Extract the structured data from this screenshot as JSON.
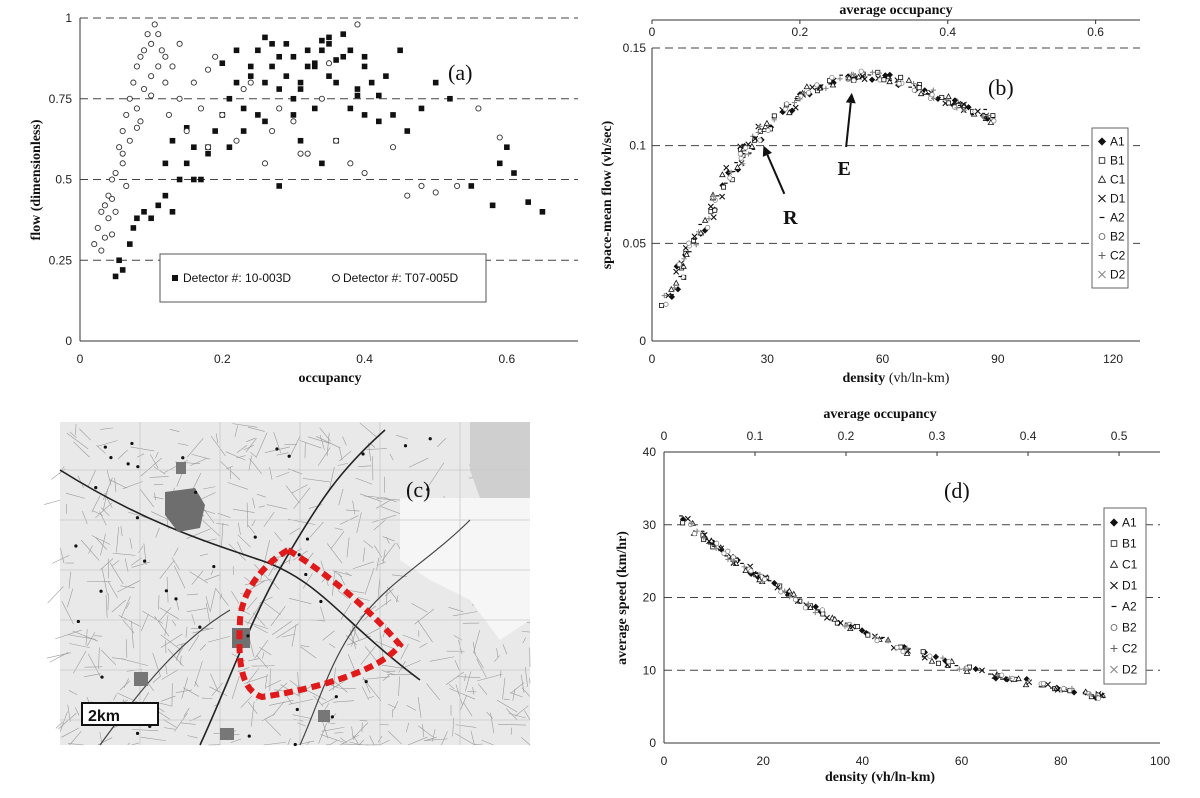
{
  "chart_data": [
    {
      "id": "a",
      "type": "scatter",
      "panel_label": "(a)",
      "xlabel": "occupancy",
      "ylabel": "flow (dimensionless)",
      "xlim": [
        0,
        0.7
      ],
      "ylim": [
        0,
        1
      ],
      "xticks": [
        "0",
        "0.2",
        "0.4",
        "0.6"
      ],
      "xtick_values": [
        0,
        0.2,
        0.4,
        0.6
      ],
      "yticks": [
        "0",
        "0.25",
        "0.5",
        "0.75",
        "1"
      ],
      "ytick_values": [
        0,
        0.25,
        0.5,
        0.75,
        1
      ],
      "legend_position": "bottom-center",
      "series": [
        {
          "name": "Detector #: 10-003D",
          "marker": "filled-square",
          "x": [
            0.05,
            0.055,
            0.06,
            0.07,
            0.075,
            0.08,
            0.09,
            0.1,
            0.11,
            0.12,
            0.13,
            0.14,
            0.15,
            0.16,
            0.17,
            0.18,
            0.19,
            0.2,
            0.21,
            0.22,
            0.23,
            0.24,
            0.25,
            0.26,
            0.27,
            0.28,
            0.29,
            0.3,
            0.31,
            0.32,
            0.33,
            0.34,
            0.35,
            0.36,
            0.37,
            0.38,
            0.39,
            0.4,
            0.41,
            0.42,
            0.43,
            0.44,
            0.45,
            0.46,
            0.48,
            0.5,
            0.52,
            0.55,
            0.58,
            0.59,
            0.6,
            0.61,
            0.63,
            0.65,
            0.22,
            0.24,
            0.26,
            0.28,
            0.3,
            0.32,
            0.34,
            0.36,
            0.38,
            0.4,
            0.25,
            0.27,
            0.29,
            0.31,
            0.33,
            0.35,
            0.37,
            0.39,
            0.21,
            0.23,
            0.3,
            0.34,
            0.42,
            0.16,
            0.18,
            0.13,
            0.15,
            0.12,
            0.2,
            0.26,
            0.36,
            0.4,
            0.33,
            0.31,
            0.35,
            0.28
          ],
          "y": [
            0.2,
            0.25,
            0.22,
            0.3,
            0.35,
            0.38,
            0.4,
            0.38,
            0.42,
            0.45,
            0.4,
            0.5,
            0.55,
            0.6,
            0.5,
            0.6,
            0.65,
            0.7,
            0.75,
            0.8,
            0.72,
            0.85,
            0.9,
            0.8,
            0.85,
            0.78,
            0.92,
            0.88,
            0.8,
            0.9,
            0.85,
            0.93,
            0.82,
            0.87,
            0.95,
            0.9,
            0.78,
            0.85,
            0.8,
            0.76,
            0.82,
            0.7,
            0.9,
            0.65,
            0.72,
            0.8,
            0.75,
            0.48,
            0.42,
            0.55,
            0.6,
            0.52,
            0.43,
            0.4,
            0.9,
            0.82,
            0.94,
            0.88,
            0.75,
            0.85,
            0.9,
            0.8,
            0.72,
            0.88,
            0.7,
            0.92,
            0.82,
            0.78,
            0.86,
            0.94,
            0.88,
            0.76,
            0.6,
            0.65,
            0.7,
            0.55,
            0.68,
            0.5,
            0.58,
            0.62,
            0.66,
            0.55,
            0.86,
            0.68,
            0.62,
            0.7,
            0.72,
            0.62,
            0.92,
            0.48
          ]
        },
        {
          "name": "Detector #: T07-005D",
          "marker": "open-circle",
          "x": [
            0.02,
            0.025,
            0.03,
            0.03,
            0.035,
            0.04,
            0.04,
            0.045,
            0.05,
            0.05,
            0.055,
            0.06,
            0.06,
            0.065,
            0.07,
            0.07,
            0.075,
            0.08,
            0.08,
            0.085,
            0.09,
            0.09,
            0.095,
            0.1,
            0.1,
            0.105,
            0.11,
            0.11,
            0.115,
            0.12,
            0.125,
            0.13,
            0.14,
            0.15,
            0.16,
            0.17,
            0.18,
            0.19,
            0.2,
            0.22,
            0.24,
            0.26,
            0.28,
            0.3,
            0.32,
            0.34,
            0.36,
            0.38,
            0.4,
            0.44,
            0.46,
            0.48,
            0.5,
            0.53,
            0.56,
            0.59,
            0.035,
            0.045,
            0.06,
            0.08,
            0.1,
            0.12,
            0.14,
            0.18,
            0.23,
            0.27,
            0.31,
            0.35,
            0.39,
            0.045,
            0.065,
            0.085
          ],
          "y": [
            0.3,
            0.35,
            0.4,
            0.28,
            0.42,
            0.38,
            0.45,
            0.5,
            0.52,
            0.4,
            0.6,
            0.65,
            0.55,
            0.7,
            0.75,
            0.62,
            0.8,
            0.85,
            0.72,
            0.88,
            0.9,
            0.78,
            0.95,
            0.92,
            0.82,
            0.98,
            0.95,
            0.85,
            0.9,
            0.8,
            0.7,
            0.85,
            0.75,
            0.65,
            0.8,
            0.72,
            0.6,
            0.88,
            0.7,
            0.62,
            0.8,
            0.55,
            0.72,
            0.68,
            0.58,
            0.75,
            0.62,
            0.55,
            0.52,
            0.6,
            0.45,
            0.48,
            0.46,
            0.48,
            0.72,
            0.63,
            0.32,
            0.44,
            0.58,
            0.66,
            0.76,
            0.88,
            0.92,
            0.84,
            0.78,
            0.65,
            0.58,
            0.86,
            0.98,
            0.33,
            0.48,
            0.68
          ]
        }
      ]
    },
    {
      "id": "b",
      "type": "scatter",
      "panel_label": "(b)",
      "xlabel": "density",
      "xlabel_unit": "(vh/ln-km)",
      "ylabel": "space-mean flow (vh/sec)",
      "top_xlabel": "average occupancy",
      "xlim": [
        0,
        127
      ],
      "ylim": [
        0,
        0.15
      ],
      "xticks": [
        "0",
        "30",
        "60",
        "90",
        "120"
      ],
      "xtick_values": [
        0,
        30,
        60,
        90,
        120
      ],
      "yticks": [
        "0",
        "0.05",
        "0.1",
        "0.15"
      ],
      "ytick_values": [
        0,
        0.05,
        0.1,
        0.15
      ],
      "top_xlim": [
        0,
        0.66
      ],
      "top_xticks": [
        "0",
        "0.2",
        "0.4",
        "0.6"
      ],
      "top_xtick_values": [
        0,
        0.2,
        0.4,
        0.6
      ],
      "legend": [
        "A1",
        "B1",
        "C1",
        "D1",
        "A2",
        "B2",
        "C2",
        "D2"
      ],
      "legend_position": "right",
      "annotations": [
        {
          "text": "E",
          "target_x": 52,
          "target_y": 0.127,
          "text_x": 50,
          "text_y": 0.085
        },
        {
          "text": "R",
          "target_x": 29,
          "target_y": 0.1,
          "text_x": 36,
          "text_y": 0.06
        }
      ],
      "curve_x": [
        4,
        5,
        7,
        9,
        11,
        13,
        15,
        17,
        19,
        21,
        23,
        25,
        27,
        29,
        31,
        34,
        37,
        40,
        43,
        46,
        49,
        52,
        55,
        58,
        61,
        64,
        67,
        70,
        73,
        76,
        79,
        82,
        85,
        88
      ],
      "curve_y": [
        0.02,
        0.026,
        0.034,
        0.042,
        0.05,
        0.058,
        0.066,
        0.074,
        0.081,
        0.088,
        0.094,
        0.099,
        0.104,
        0.108,
        0.112,
        0.118,
        0.123,
        0.127,
        0.13,
        0.132,
        0.134,
        0.135,
        0.136,
        0.136,
        0.135,
        0.133,
        0.131,
        0.128,
        0.126,
        0.123,
        0.121,
        0.119,
        0.117,
        0.114
      ]
    },
    {
      "id": "d",
      "type": "scatter",
      "panel_label": "(d)",
      "xlabel": "density",
      "xlabel_unit": "(vh/ln-km)",
      "ylabel": "average speed (km/hr)",
      "top_xlabel": "average occupancy",
      "xlim": [
        0,
        100
      ],
      "ylim": [
        0,
        40
      ],
      "xticks": [
        "0",
        "20",
        "40",
        "60",
        "80",
        "100"
      ],
      "xtick_values": [
        0,
        20,
        40,
        60,
        80,
        100
      ],
      "yticks": [
        "0",
        "10",
        "20",
        "30",
        "40"
      ],
      "ytick_values": [
        0,
        10,
        20,
        30,
        40
      ],
      "top_xlim": [
        0,
        0.545
      ],
      "top_xticks": [
        "0",
        "0.1",
        "0.2",
        "0.3",
        "0.4",
        "0.5"
      ],
      "top_xtick_values": [
        0,
        0.1,
        0.2,
        0.3,
        0.4,
        0.5
      ],
      "legend": [
        "A1",
        "B1",
        "C1",
        "D1",
        "A2",
        "B2",
        "C2",
        "D2"
      ],
      "legend_position": "right",
      "curve_x": [
        4,
        6,
        8,
        10,
        12,
        14,
        16,
        18,
        20,
        22,
        25,
        28,
        31,
        34,
        37,
        40,
        44,
        48,
        52,
        56,
        60,
        64,
        68,
        72,
        76,
        80,
        84,
        88
      ],
      "curve_y": [
        31,
        29.5,
        28.3,
        27.3,
        26.3,
        25.3,
        24.4,
        23.5,
        22.6,
        21.8,
        20.5,
        19.3,
        18.2,
        17.1,
        16.1,
        15.2,
        14.1,
        13,
        12.1,
        11.2,
        10.4,
        9.7,
        9,
        8.5,
        8,
        7.5,
        7,
        6.4
      ]
    }
  ],
  "map": {
    "panel_label": "(c)",
    "scale_label": "2km"
  }
}
